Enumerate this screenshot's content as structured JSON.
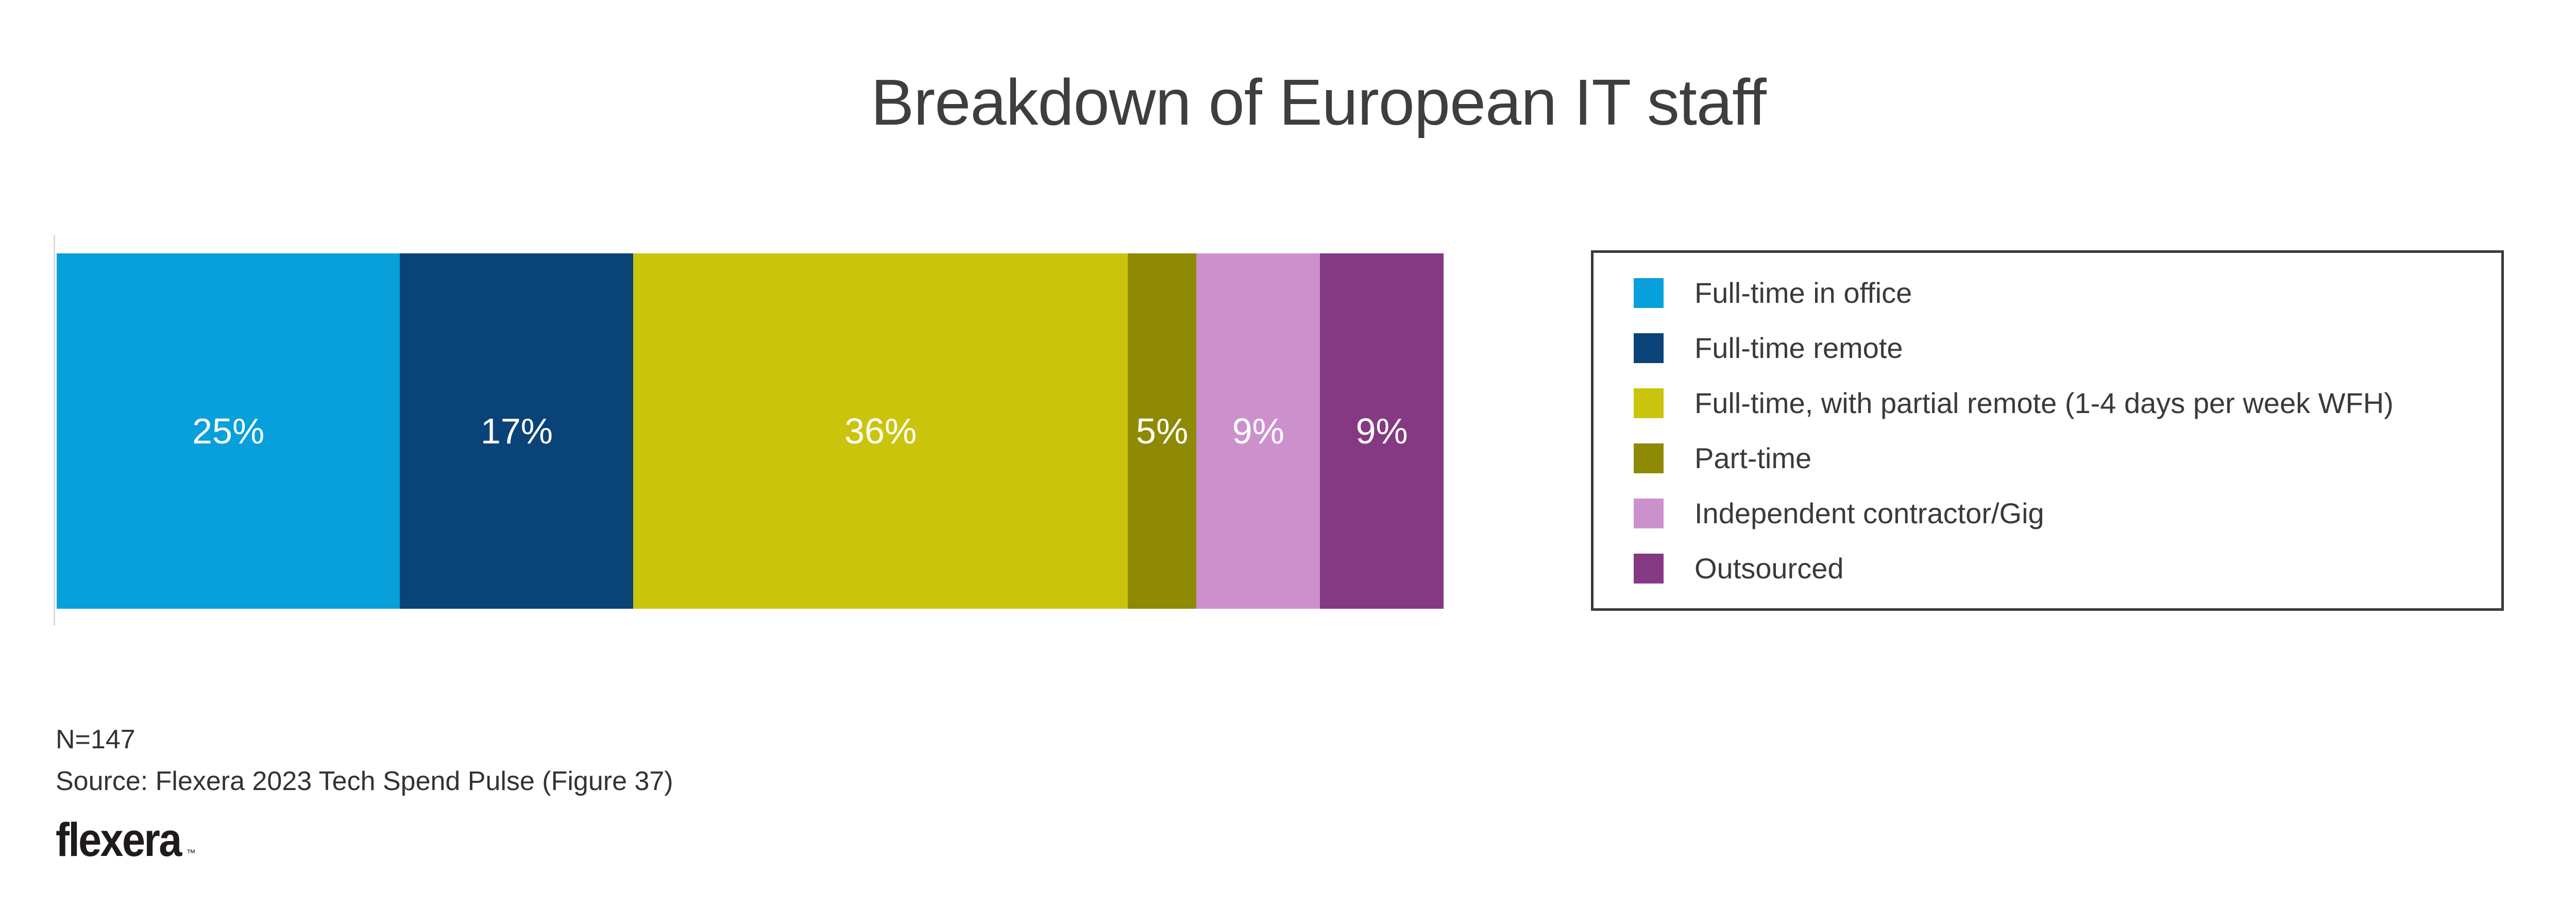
{
  "title": "Breakdown of European IT staff",
  "chart_data": {
    "type": "bar",
    "subtype": "horizontal-stacked-percentage",
    "title": "Breakdown of European IT staff",
    "value_labels": "inside-center",
    "legend_position": "right",
    "segments": [
      {
        "label": "Full-time in office",
        "value": 25,
        "display": "25%",
        "color": "#07a0db"
      },
      {
        "label": "Full-time remote",
        "value": 17,
        "display": "17%",
        "color": "#0a4377"
      },
      {
        "label": "Full-time, with partial remote (1-4 days per week WFH)",
        "value": 36,
        "display": "36%",
        "color": "#cbc40c"
      },
      {
        "label": "Part-time",
        "value": 5,
        "display": "5%",
        "color": "#8e8a04"
      },
      {
        "label": "Independent contractor/Gig",
        "value": 9,
        "display": "9%",
        "color": "#cc91cd"
      },
      {
        "label": "Outsourced",
        "value": 9,
        "display": "9%",
        "color": "#853982"
      }
    ]
  },
  "footer": {
    "sample_size": "N=147",
    "source": "Source: Flexera 2023 Tech Spend Pulse (Figure 37)",
    "logo": "flexera",
    "trademark": "™"
  }
}
